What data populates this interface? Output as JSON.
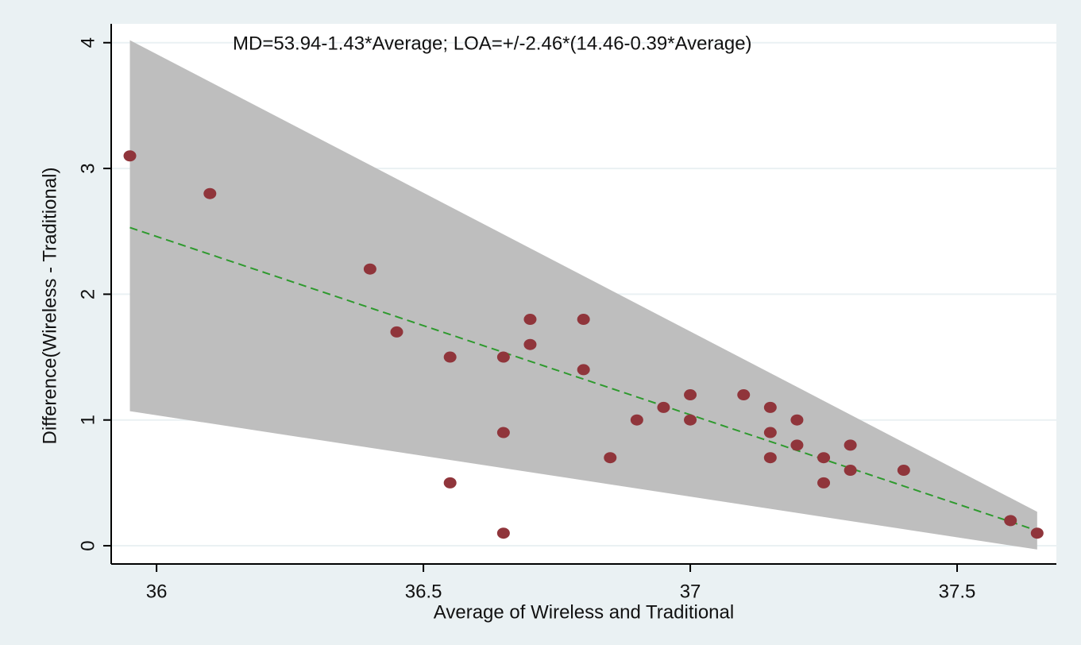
{
  "chart_data": {
    "type": "scatter",
    "annotation": "MD=53.94-1.43*Average; LOA=+/-2.46*(14.46-0.39*Average)",
    "x_label": "Average of Wireless and Traditional",
    "y_label": "Difference(Wireless - Traditional)",
    "xlim": [
      35.915,
      37.686
    ],
    "xticks": [
      36,
      36.5,
      37,
      37.5
    ],
    "ylim": [
      -0.145,
      4.15
    ],
    "yticks": [
      0,
      1,
      2,
      3,
      4
    ],
    "grid": true,
    "points": {
      "color": "#90353b",
      "x": [
        35.95,
        36.1,
        36.4,
        36.45,
        36.55,
        36.55,
        36.65,
        36.65,
        36.65,
        36.7,
        36.7,
        36.8,
        36.8,
        36.85,
        36.9,
        36.95,
        37,
        37,
        37.1,
        37.15,
        37.15,
        37.15,
        37.2,
        37.2,
        37.25,
        37.25,
        37.3,
        37.3,
        37.4,
        37.6,
        37.65
      ],
      "values": [
        3.1,
        2.8,
        2.2,
        1.7,
        1.5,
        0.5,
        1.5,
        0.9,
        0.1,
        1.8,
        1.6,
        1.8,
        1.4,
        0.7,
        1.0,
        1.1,
        1.2,
        1.0,
        1.2,
        1.1,
        0.9,
        0.7,
        1.0,
        0.8,
        0.7,
        0.5,
        0.8,
        0.6,
        0.6,
        0.2,
        0.1
      ]
    },
    "fit_line": {
      "color": "#2e9a2e",
      "x": [
        35.95,
        37.65
      ],
      "values": [
        2.53,
        0.12
      ]
    },
    "band": {
      "color": "#bebebe",
      "x": [
        35.95,
        37.65
      ],
      "upper": [
        4.02,
        0.27
      ],
      "lower": [
        1.07,
        -0.03
      ]
    }
  }
}
